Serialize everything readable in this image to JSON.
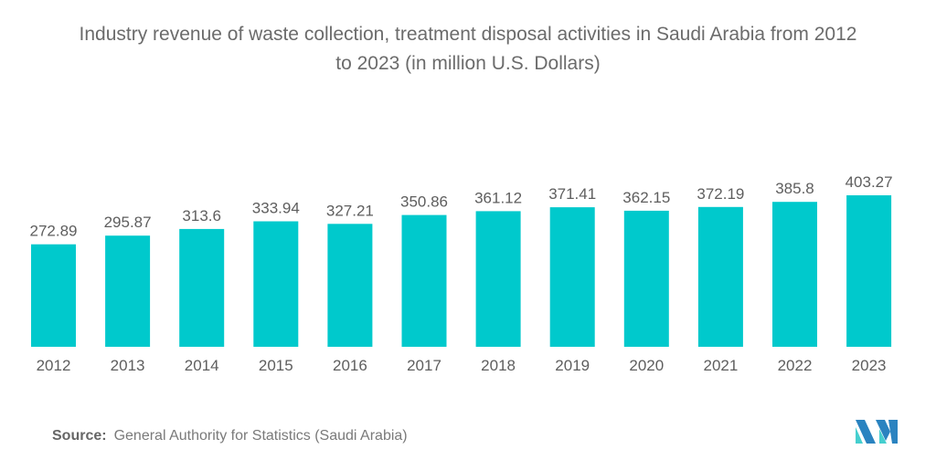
{
  "chart_data": {
    "type": "bar",
    "title": "Industry revenue of waste collection, treatment disposal activities in Saudi Arabia from 2012 to 2023 (in million U.S. Dollars)",
    "title_lines": [
      "Industry revenue of waste collection, treatment disposal activities in Saudi Arabia from 2012",
      "to 2023 (in million U.S. Dollars)"
    ],
    "categories": [
      "2012",
      "2013",
      "2014",
      "2015",
      "2016",
      "2017",
      "2018",
      "2019",
      "2020",
      "2021",
      "2022",
      "2023"
    ],
    "values": [
      272.89,
      295.87,
      313.6,
      333.94,
      327.21,
      350.86,
      361.12,
      371.41,
      362.15,
      372.19,
      385.8,
      403.27
    ],
    "value_labels": [
      "272.89",
      "295.87",
      "313.6",
      "333.94",
      "327.21",
      "350.86",
      "361.12",
      "371.41",
      "362.15",
      "372.19",
      "385.8",
      "403.27"
    ],
    "xlabel": "",
    "ylabel": "",
    "ylim": [
      0,
      403.27
    ],
    "grid": false,
    "legend": "none",
    "bar_color": "#00c9cc"
  },
  "source": {
    "label": "Source:",
    "text": "General Authority for Statistics (Saudi Arabia)"
  },
  "logo": {
    "name": "mordor-intelligence-logo",
    "colors": [
      "#2a83c0",
      "#45cfcf"
    ]
  }
}
